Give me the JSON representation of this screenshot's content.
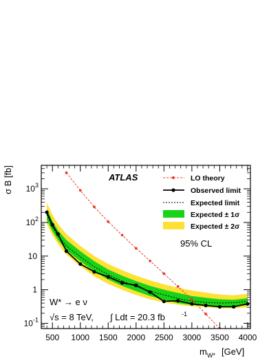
{
  "chart_data": {
    "type": "line",
    "title": "",
    "experiment_label": "ATLAS",
    "ylabel": "σ B [fb]",
    "xlabel_main": "m",
    "xlabel_sub": "W*",
    "xlabel_unit": "[GeV]",
    "xlim": [
      300,
      4050
    ],
    "ylim": [
      0.07,
      5000
    ],
    "yscale": "log",
    "x_ticks": [
      500,
      1000,
      1500,
      2000,
      2500,
      3000,
      3500,
      4000
    ],
    "y_ticks": [
      {
        "value": 0.1,
        "base": "10",
        "exp": "-1"
      },
      {
        "value": 1,
        "base": "1",
        "exp": ""
      },
      {
        "value": 10,
        "base": "10",
        "exp": ""
      },
      {
        "value": 100,
        "base": "10",
        "exp": "2"
      },
      {
        "value": 1000,
        "base": "10",
        "exp": "3"
      }
    ],
    "legend": {
      "position": "top-right",
      "lo_theory": "LO theory",
      "observed": "Observed limit",
      "expected": "Expected  limit",
      "band1": "Expected ± 1σ",
      "band2": "Expected ± 2σ"
    },
    "annotations": {
      "cl": "95% CL",
      "process": "W* → e ν",
      "energy": "√s = 8 TeV,",
      "lumi": "∫ Ldt = 20.3 fb",
      "lumi_exp": "-1"
    },
    "colors": {
      "theory": "#e8392b",
      "observed": "#000000",
      "band1": "#18d318",
      "band2": "#ffe034"
    },
    "series": [
      {
        "name": "LO theory",
        "x": [
          750,
          1000,
          1250,
          1500,
          1750,
          2000,
          2250,
          2500,
          2750,
          3000,
          3250,
          3500
        ],
        "values": [
          3000,
          900,
          290,
          105,
          42,
          17,
          7.2,
          3.0,
          1.25,
          0.52,
          0.19,
          0.07
        ]
      },
      {
        "name": "Observed limit",
        "x": [
          400,
          500,
          600,
          750,
          1000,
          1250,
          1500,
          1750,
          2000,
          2250,
          2500,
          2750,
          3000,
          3250,
          3500,
          3750,
          4000
        ],
        "values": [
          200,
          85,
          45,
          14,
          5.8,
          3.4,
          2.4,
          1.6,
          1.35,
          0.85,
          0.45,
          0.47,
          0.38,
          0.34,
          0.31,
          0.31,
          0.38
        ]
      },
      {
        "name": "Expected  limit",
        "x": [
          400,
          500,
          600,
          750,
          1000,
          1250,
          1500,
          1750,
          2000,
          2250,
          2500,
          2750,
          3000,
          3250,
          3500,
          3750,
          4000
        ],
        "values": [
          170,
          75,
          40,
          20,
          9.5,
          4.8,
          2.8,
          1.8,
          1.25,
          0.9,
          0.7,
          0.55,
          0.46,
          0.42,
          0.4,
          0.41,
          0.45
        ]
      },
      {
        "name": "Expected ± 1σ",
        "x": [
          400,
          500,
          600,
          750,
          1000,
          1250,
          1500,
          1750,
          2000,
          2250,
          2500,
          2750,
          3000,
          3250,
          3500,
          3750,
          4000
        ],
        "low": [
          120,
          55,
          30,
          15,
          7,
          3.5,
          2.0,
          1.3,
          0.9,
          0.65,
          0.5,
          0.4,
          0.35,
          0.33,
          0.31,
          0.32,
          0.35
        ],
        "high": [
          250,
          110,
          58,
          30,
          14,
          7.0,
          4.0,
          2.6,
          1.8,
          1.3,
          1.0,
          0.8,
          0.65,
          0.58,
          0.52,
          0.5,
          0.56
        ]
      },
      {
        "name": "Expected ± 2σ",
        "x": [
          400,
          500,
          600,
          750,
          1000,
          1250,
          1500,
          1750,
          2000,
          2250,
          2500,
          2750,
          3000,
          3250,
          3500,
          3750,
          4000
        ],
        "low": [
          90,
          42,
          23,
          11,
          5.0,
          2.5,
          1.5,
          1.0,
          0.7,
          0.52,
          0.42,
          0.36,
          0.32,
          0.3,
          0.28,
          0.28,
          0.3
        ],
        "high": [
          380,
          170,
          90,
          45,
          20,
          10,
          5.8,
          3.8,
          2.6,
          1.9,
          1.45,
          1.15,
          0.95,
          0.82,
          0.72,
          0.68,
          0.75
        ]
      }
    ]
  }
}
